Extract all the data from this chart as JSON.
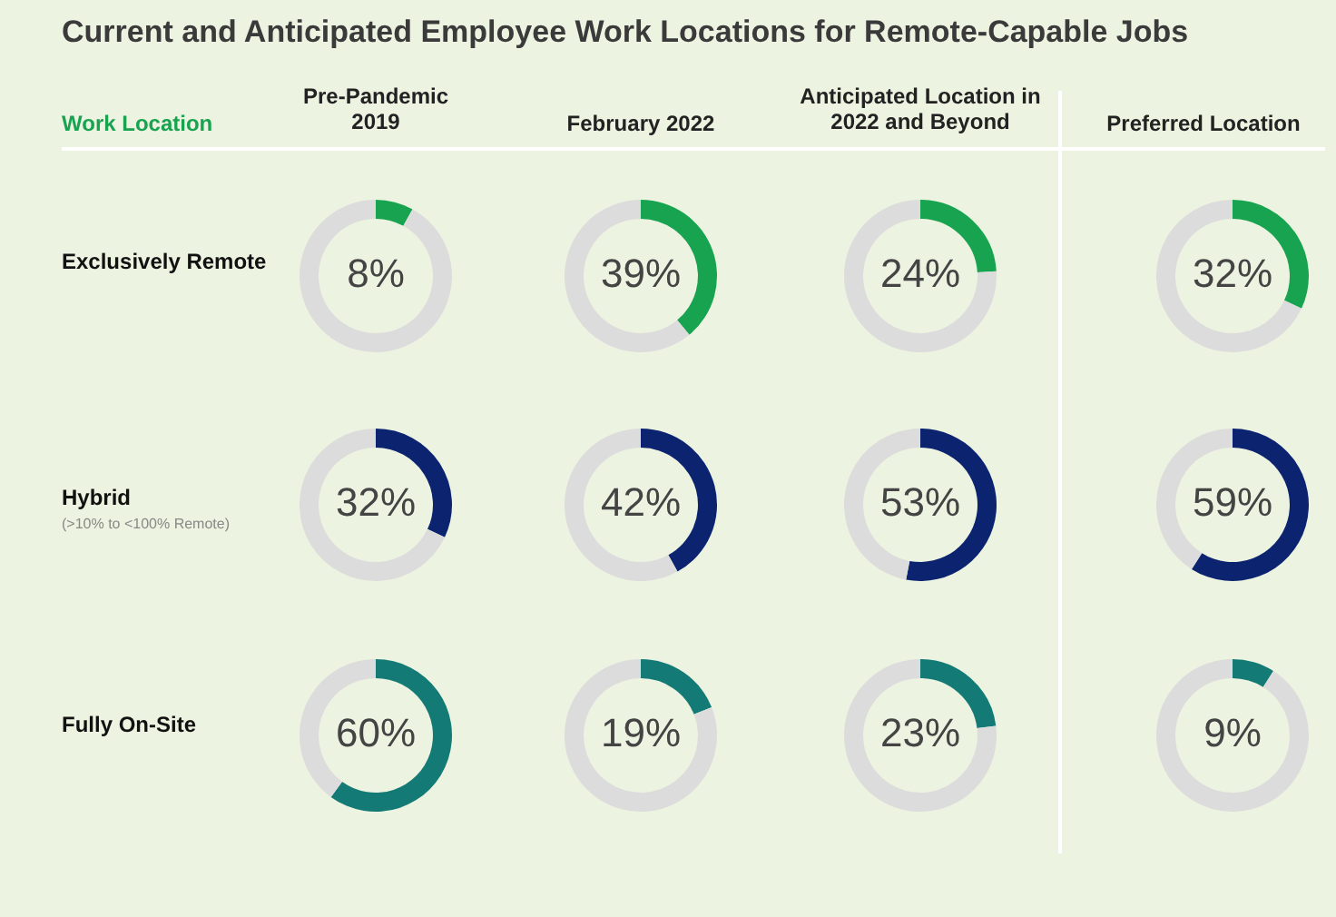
{
  "chart_data": [
    {
      "type": "other",
      "title": "Current and Anticipated Employee Work Locations for Remote-Capable Jobs",
      "annotations": [
        "Work Location",
        "Pre-Pandemic\n2019",
        "February 2022",
        "Anticipated Location in\n2022 and Beyond",
        "Preferred Location",
        "Exclusively Remote",
        "Hybrid",
        "(>10% to <100% Remote)",
        "Fully On-Site"
      ]
    },
    {
      "type": "donut",
      "categories": [
        null,
        null
      ],
      "values": [
        8,
        92
      ],
      "colors": [
        "#17a34f",
        "#dcdcdc"
      ],
      "value_labels": [
        "8%",
        null
      ]
    },
    {
      "type": "donut",
      "categories": [
        null,
        null
      ],
      "values": [
        39,
        61
      ],
      "colors": [
        "#17a34f",
        "#dcdcdc"
      ],
      "value_labels": [
        "39%",
        null
      ]
    },
    {
      "type": "donut",
      "categories": [
        null,
        null
      ],
      "values": [
        24,
        76
      ],
      "colors": [
        "#17a34f",
        "#dcdcdc"
      ],
      "value_labels": [
        "24%",
        null
      ]
    },
    {
      "type": "donut",
      "categories": [
        null,
        null
      ],
      "values": [
        32,
        68
      ],
      "colors": [
        "#17a34f",
        "#dcdcdc"
      ],
      "value_labels": [
        "32%",
        null
      ]
    },
    {
      "type": "donut",
      "categories": [
        null,
        null
      ],
      "values": [
        32,
        68
      ],
      "colors": [
        "#0c2470",
        "#dcdcdc"
      ],
      "value_labels": [
        "32%",
        null
      ]
    },
    {
      "type": "donut",
      "categories": [
        null,
        null
      ],
      "values": [
        42,
        58
      ],
      "colors": [
        "#0c2470",
        "#dcdcdc"
      ],
      "value_labels": [
        "42%",
        null
      ]
    },
    {
      "type": "donut",
      "categories": [
        null,
        null
      ],
      "values": [
        53,
        47
      ],
      "colors": [
        "#0c2470",
        "#dcdcdc"
      ],
      "value_labels": [
        "53%",
        null
      ]
    },
    {
      "type": "donut",
      "categories": [
        null,
        null
      ],
      "values": [
        59,
        41
      ],
      "colors": [
        "#0c2470",
        "#dcdcdc"
      ],
      "value_labels": [
        "59%",
        null
      ]
    },
    {
      "type": "donut",
      "categories": [
        null,
        null
      ],
      "values": [
        60,
        40
      ],
      "colors": [
        "#137a76",
        "#dcdcdc"
      ],
      "value_labels": [
        "60%",
        null
      ]
    },
    {
      "type": "donut",
      "categories": [
        null,
        null
      ],
      "values": [
        19,
        81
      ],
      "colors": [
        "#137a76",
        "#dcdcdc"
      ],
      "value_labels": [
        "19%",
        null
      ]
    },
    {
      "type": "donut",
      "categories": [
        null,
        null
      ],
      "values": [
        23,
        77
      ],
      "colors": [
        "#137a76",
        "#dcdcdc"
      ],
      "value_labels": [
        "23%",
        null
      ]
    },
    {
      "type": "donut",
      "categories": [
        null,
        null
      ],
      "values": [
        9,
        91
      ],
      "colors": [
        "#137a76",
        "#dcdcdc"
      ],
      "value_labels": [
        "9%",
        null
      ]
    }
  ]
}
